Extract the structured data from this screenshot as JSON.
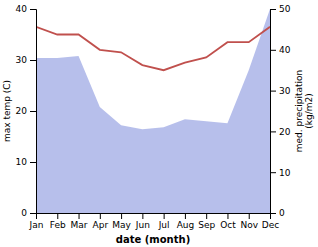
{
  "chart_data": {
    "type": "line",
    "x_label": "date (month)",
    "y_label": "max temp (C)",
    "y2_label": "med. precipitation\n(kg/m2)",
    "categories": [
      "Jan",
      "Feb",
      "Mar",
      "Apr",
      "May",
      "Jun",
      "Jul",
      "Aug",
      "Sep",
      "Oct",
      "Nov",
      "Dec"
    ],
    "series": [
      {
        "type": "line",
        "color": "#c0504d",
        "values": [
          36.5,
          35.0,
          35.0,
          32.0,
          31.5,
          29.0,
          28.0,
          29.5,
          30.5,
          33.5,
          33.5,
          36.5
        ]
      },
      {
        "type": "area",
        "axis": "y2",
        "color": "#aab4e8",
        "values": [
          38.0,
          38.0,
          38.5,
          26.0,
          21.5,
          20.5,
          21.0,
          23.0,
          22.5,
          22.0,
          35.0,
          50.0
        ]
      }
    ],
    "ylim": [
      0,
      40
    ],
    "yticks": [
      0,
      10,
      20,
      30,
      40
    ],
    "y2lim": [
      0,
      50
    ],
    "y2ticks": [
      0,
      10,
      20,
      30,
      40,
      50
    ],
    "grid": false
  }
}
